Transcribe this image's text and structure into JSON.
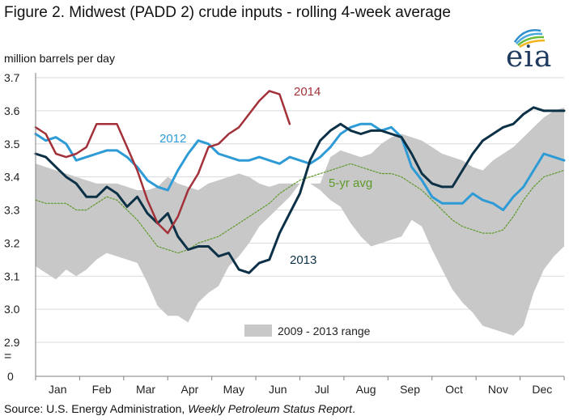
{
  "figure_title": "Figure 2. Midwest (PADD 2) crude inputs - rolling 4-week average",
  "unit_label": "million barrels per day",
  "source_prefix": "Source: U.S. Energy Administration, ",
  "source_italic": "Weekly Petroleum Status Report",
  "source_suffix": ".",
  "logo_text": "eia",
  "colors": {
    "s2012": "#2e9bd6",
    "s2013": "#0c3147",
    "s2014": "#a3313a",
    "avg": "#5e9a2a",
    "range": "#c8c8c8",
    "axis": "#7f7f7f",
    "grid": "#d9d9d9"
  },
  "chart_data": {
    "type": "line",
    "x_unit": "week of year",
    "ylim": [
      2.85,
      3.7
    ],
    "ytick_values": [
      2.9,
      3.0,
      3.1,
      3.2,
      3.3,
      3.4,
      3.5,
      3.6,
      3.7
    ],
    "ytick_labels": [
      "2.9",
      "3.0",
      "3.1",
      "3.2",
      "3.3",
      "3.4",
      "3.5",
      "3.6",
      "3.7"
    ],
    "y_zero_label": "0",
    "y_break_symbol": "=",
    "months": [
      "Jan",
      "Feb",
      "Mar",
      "Apr",
      "May",
      "Jun",
      "Jul",
      "Aug",
      "Sep",
      "Oct",
      "Nov",
      "Dec"
    ],
    "grid": "horizontal",
    "range_band": {
      "label": "2009 - 2013 range",
      "upper": [
        3.44,
        3.43,
        3.42,
        3.41,
        3.4,
        3.39,
        3.38,
        3.38,
        3.38,
        3.37,
        3.36,
        3.36,
        3.37,
        3.4,
        3.38,
        3.37,
        3.36,
        3.38,
        3.39,
        3.4,
        3.41,
        3.4,
        3.38,
        3.37,
        3.38,
        3.38,
        3.38,
        3.38,
        3.38,
        3.46,
        3.48,
        3.47,
        3.46,
        3.47,
        3.5,
        3.52,
        3.53,
        3.52,
        3.51,
        3.49,
        3.47,
        3.46,
        3.45,
        3.43,
        3.42,
        3.45,
        3.47,
        3.49,
        3.52,
        3.55,
        3.58,
        3.6,
        3.61
      ],
      "lower": [
        3.13,
        3.11,
        3.09,
        3.12,
        3.1,
        3.12,
        3.15,
        3.17,
        3.16,
        3.15,
        3.14,
        3.08,
        3.01,
        2.98,
        2.98,
        2.96,
        3.02,
        3.05,
        3.07,
        3.13,
        3.16,
        3.2,
        3.25,
        3.28,
        3.31,
        3.34,
        3.38,
        3.38,
        3.36,
        3.33,
        3.31,
        3.26,
        3.22,
        3.19,
        3.2,
        3.21,
        3.22,
        3.27,
        3.25,
        3.18,
        3.12,
        3.06,
        3.02,
        2.99,
        2.95,
        2.94,
        2.93,
        2.92,
        2.95,
        3.05,
        3.12,
        3.16,
        3.19
      ]
    },
    "series": [
      {
        "name": "5-yr avg",
        "style": "dotted",
        "values": [
          3.33,
          3.32,
          3.32,
          3.32,
          3.3,
          3.3,
          3.32,
          3.34,
          3.33,
          3.3,
          3.27,
          3.23,
          3.19,
          3.18,
          3.17,
          3.18,
          3.2,
          3.21,
          3.22,
          3.24,
          3.26,
          3.28,
          3.3,
          3.32,
          3.35,
          3.37,
          3.39,
          3.4,
          3.41,
          3.42,
          3.43,
          3.44,
          3.43,
          3.42,
          3.41,
          3.41,
          3.4,
          3.38,
          3.36,
          3.33,
          3.3,
          3.27,
          3.25,
          3.24,
          3.23,
          3.23,
          3.24,
          3.28,
          3.33,
          3.37,
          3.4,
          3.41,
          3.42
        ]
      },
      {
        "name": "2012",
        "style": "solid",
        "values": [
          3.53,
          3.51,
          3.52,
          3.5,
          3.45,
          3.46,
          3.47,
          3.48,
          3.48,
          3.46,
          3.43,
          3.39,
          3.37,
          3.36,
          3.42,
          3.47,
          3.51,
          3.5,
          3.47,
          3.46,
          3.45,
          3.45,
          3.46,
          3.45,
          3.44,
          3.46,
          3.45,
          3.44,
          3.46,
          3.49,
          3.53,
          3.55,
          3.56,
          3.56,
          3.54,
          3.55,
          3.52,
          3.43,
          3.39,
          3.34,
          3.32,
          3.32,
          3.32,
          3.35,
          3.33,
          3.32,
          3.3,
          3.34,
          3.37,
          3.42,
          3.47,
          3.46,
          3.45
        ]
      },
      {
        "name": "2013",
        "style": "solid",
        "values": [
          3.47,
          3.46,
          3.43,
          3.4,
          3.38,
          3.34,
          3.34,
          3.37,
          3.35,
          3.31,
          3.34,
          3.29,
          3.26,
          3.29,
          3.22,
          3.18,
          3.19,
          3.19,
          3.16,
          3.17,
          3.12,
          3.11,
          3.14,
          3.15,
          3.23,
          3.29,
          3.35,
          3.45,
          3.51,
          3.54,
          3.56,
          3.54,
          3.53,
          3.54,
          3.54,
          3.53,
          3.52,
          3.47,
          3.41,
          3.38,
          3.37,
          3.37,
          3.42,
          3.47,
          3.51,
          3.53,
          3.55,
          3.56,
          3.59,
          3.61,
          3.6,
          3.6,
          3.6
        ]
      },
      {
        "name": "2014",
        "style": "solid",
        "values": [
          3.55,
          3.53,
          3.47,
          3.46,
          3.47,
          3.49,
          3.56,
          3.56,
          3.56,
          3.49,
          3.42,
          3.33,
          3.26,
          3.23,
          3.28,
          3.36,
          3.41,
          3.49,
          3.5,
          3.53,
          3.55,
          3.59,
          3.63,
          3.66,
          3.65,
          3.56
        ]
      }
    ],
    "legend": "labels placed inline near lines; range key at bottom-center"
  }
}
